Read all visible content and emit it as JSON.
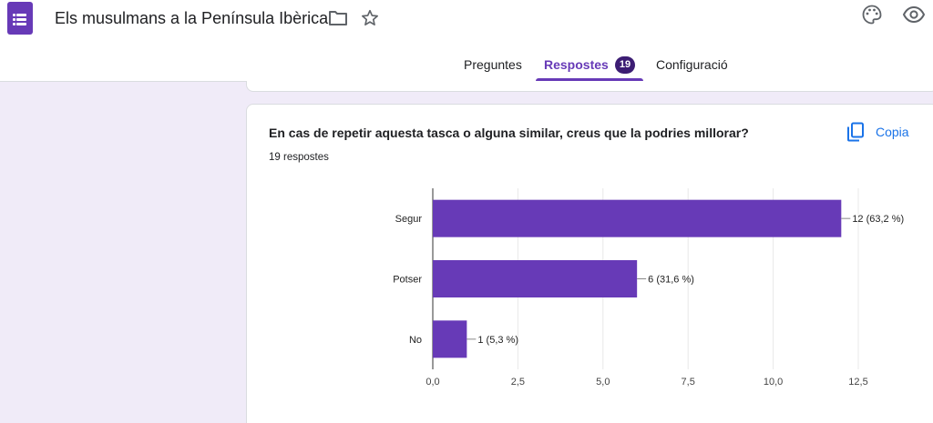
{
  "header": {
    "title": "Els musulmans a la Península Ibèrica",
    "tabs": [
      {
        "label": "Preguntes"
      },
      {
        "label": "Respostes",
        "badge": "19"
      },
      {
        "label": "Configuració"
      }
    ],
    "active_tab": "Respostes",
    "accent_color": "#673ab7"
  },
  "card": {
    "question": "En cas de repetir aquesta tasca o alguna similar, creus que la podries millorar?",
    "response_count": "19 respostes",
    "copy_label": "Copia"
  },
  "chart_data": {
    "type": "bar",
    "orientation": "horizontal",
    "categories": [
      "Segur",
      "Potser",
      "No"
    ],
    "values": [
      12,
      6,
      1
    ],
    "data_labels": [
      "12 (63,2 %)",
      "6 (31,6 %)",
      "1 (5,3 %)"
    ],
    "xlim": [
      0,
      12.5
    ],
    "x_ticks": [
      "0,0",
      "2,5",
      "5,0",
      "7,5",
      "10,0",
      "12,5"
    ],
    "bar_color": "#673ab7",
    "grid": true
  }
}
